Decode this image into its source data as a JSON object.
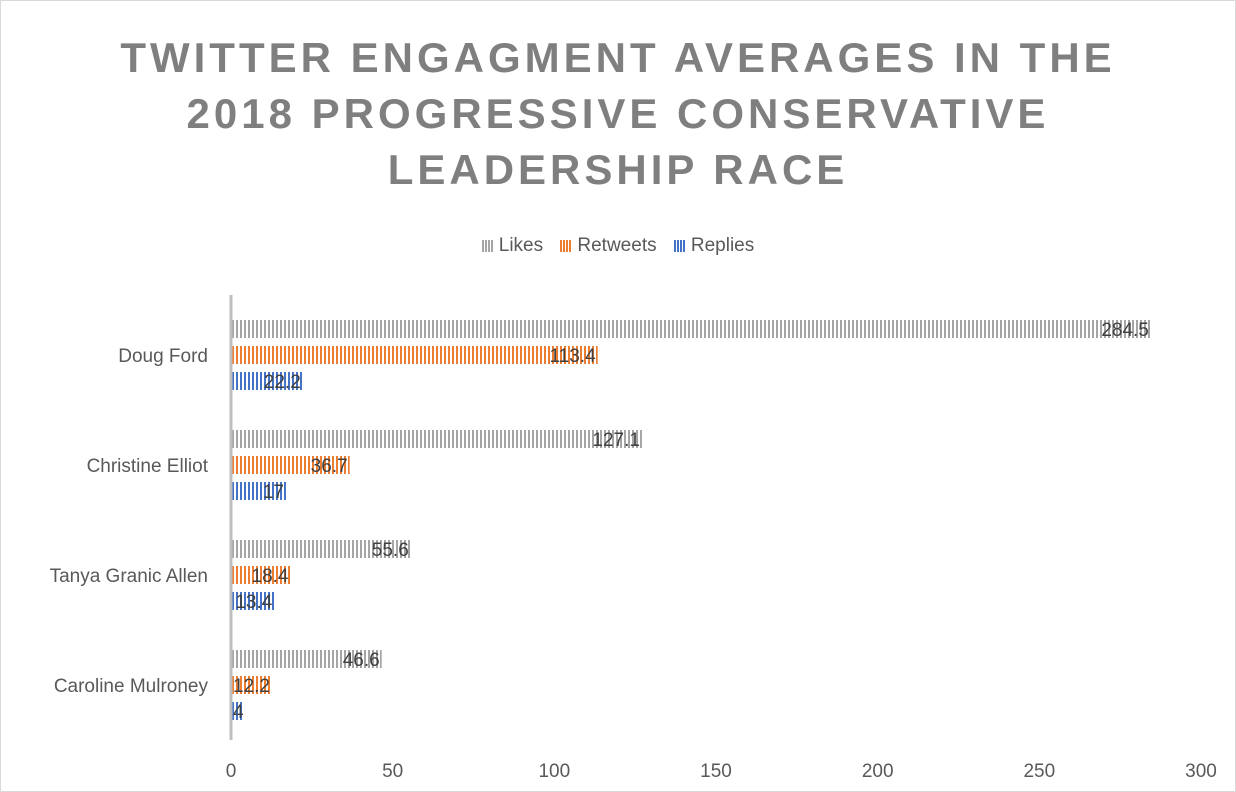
{
  "colors": {
    "likes": "#a5a5a5",
    "retweets": "#ed7d31",
    "replies": "#4472c4",
    "title": "#7f7f7f",
    "axis": "#bfbfbf"
  },
  "chart_data": {
    "type": "bar",
    "orientation": "horizontal",
    "title_lines": [
      "TWITTER ENGAGMENT AVERAGES IN THE",
      "2018 PROGRESSIVE CONSERVATIVE",
      "LEADERSHIP RACE"
    ],
    "categories": [
      "Doug Ford",
      "Christine Elliot",
      "Tanya Granic Allen",
      "Caroline Mulroney"
    ],
    "series": [
      {
        "name": "Likes",
        "values": [
          284.5,
          127.1,
          55.6,
          46.6
        ],
        "pattern": "vertical-stripes"
      },
      {
        "name": "Retweets",
        "values": [
          113.4,
          36.7,
          18.4,
          12.2
        ],
        "pattern": "vertical-stripes"
      },
      {
        "name": "Replies",
        "values": [
          22.2,
          17,
          13.4,
          4
        ],
        "pattern": "vertical-stripes"
      }
    ],
    "xlim": [
      0,
      300
    ],
    "xticks": [
      "0",
      "50",
      "100",
      "150",
      "200",
      "250",
      "300"
    ],
    "legend_position": "top",
    "grid": false
  }
}
